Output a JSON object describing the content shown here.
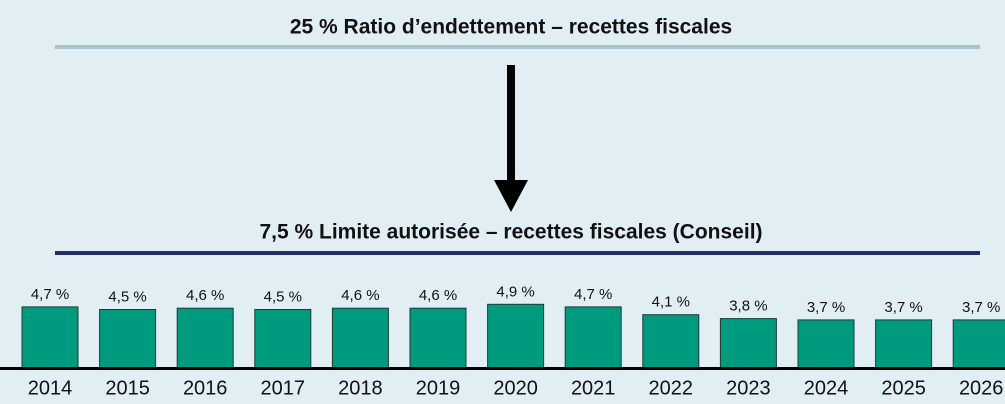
{
  "chart_data": {
    "type": "bar",
    "title": "25 % Ratio d’endettement – recettes fiscales",
    "subtitle": "7,5 % Limite autorisée – recettes fiscales (Conseil)",
    "categories": [
      "2014",
      "2015",
      "2016",
      "2017",
      "2018",
      "2019",
      "2020",
      "2021",
      "2022",
      "2023",
      "2024",
      "2025",
      "2026"
    ],
    "values": [
      4.7,
      4.5,
      4.6,
      4.5,
      4.6,
      4.6,
      4.9,
      4.7,
      4.1,
      3.8,
      3.7,
      3.7,
      3.7
    ],
    "value_labels": [
      "4,7 %",
      "4,5 %",
      "4,6 %",
      "4,5 %",
      "4,6 %",
      "4,6 %",
      "4,9 %",
      "4,7 %",
      "4,1 %",
      "3,8 %",
      "3,7 %",
      "3,7 %",
      "3,7 %"
    ],
    "color": "#009a7e",
    "ylim": [
      0,
      5
    ]
  }
}
